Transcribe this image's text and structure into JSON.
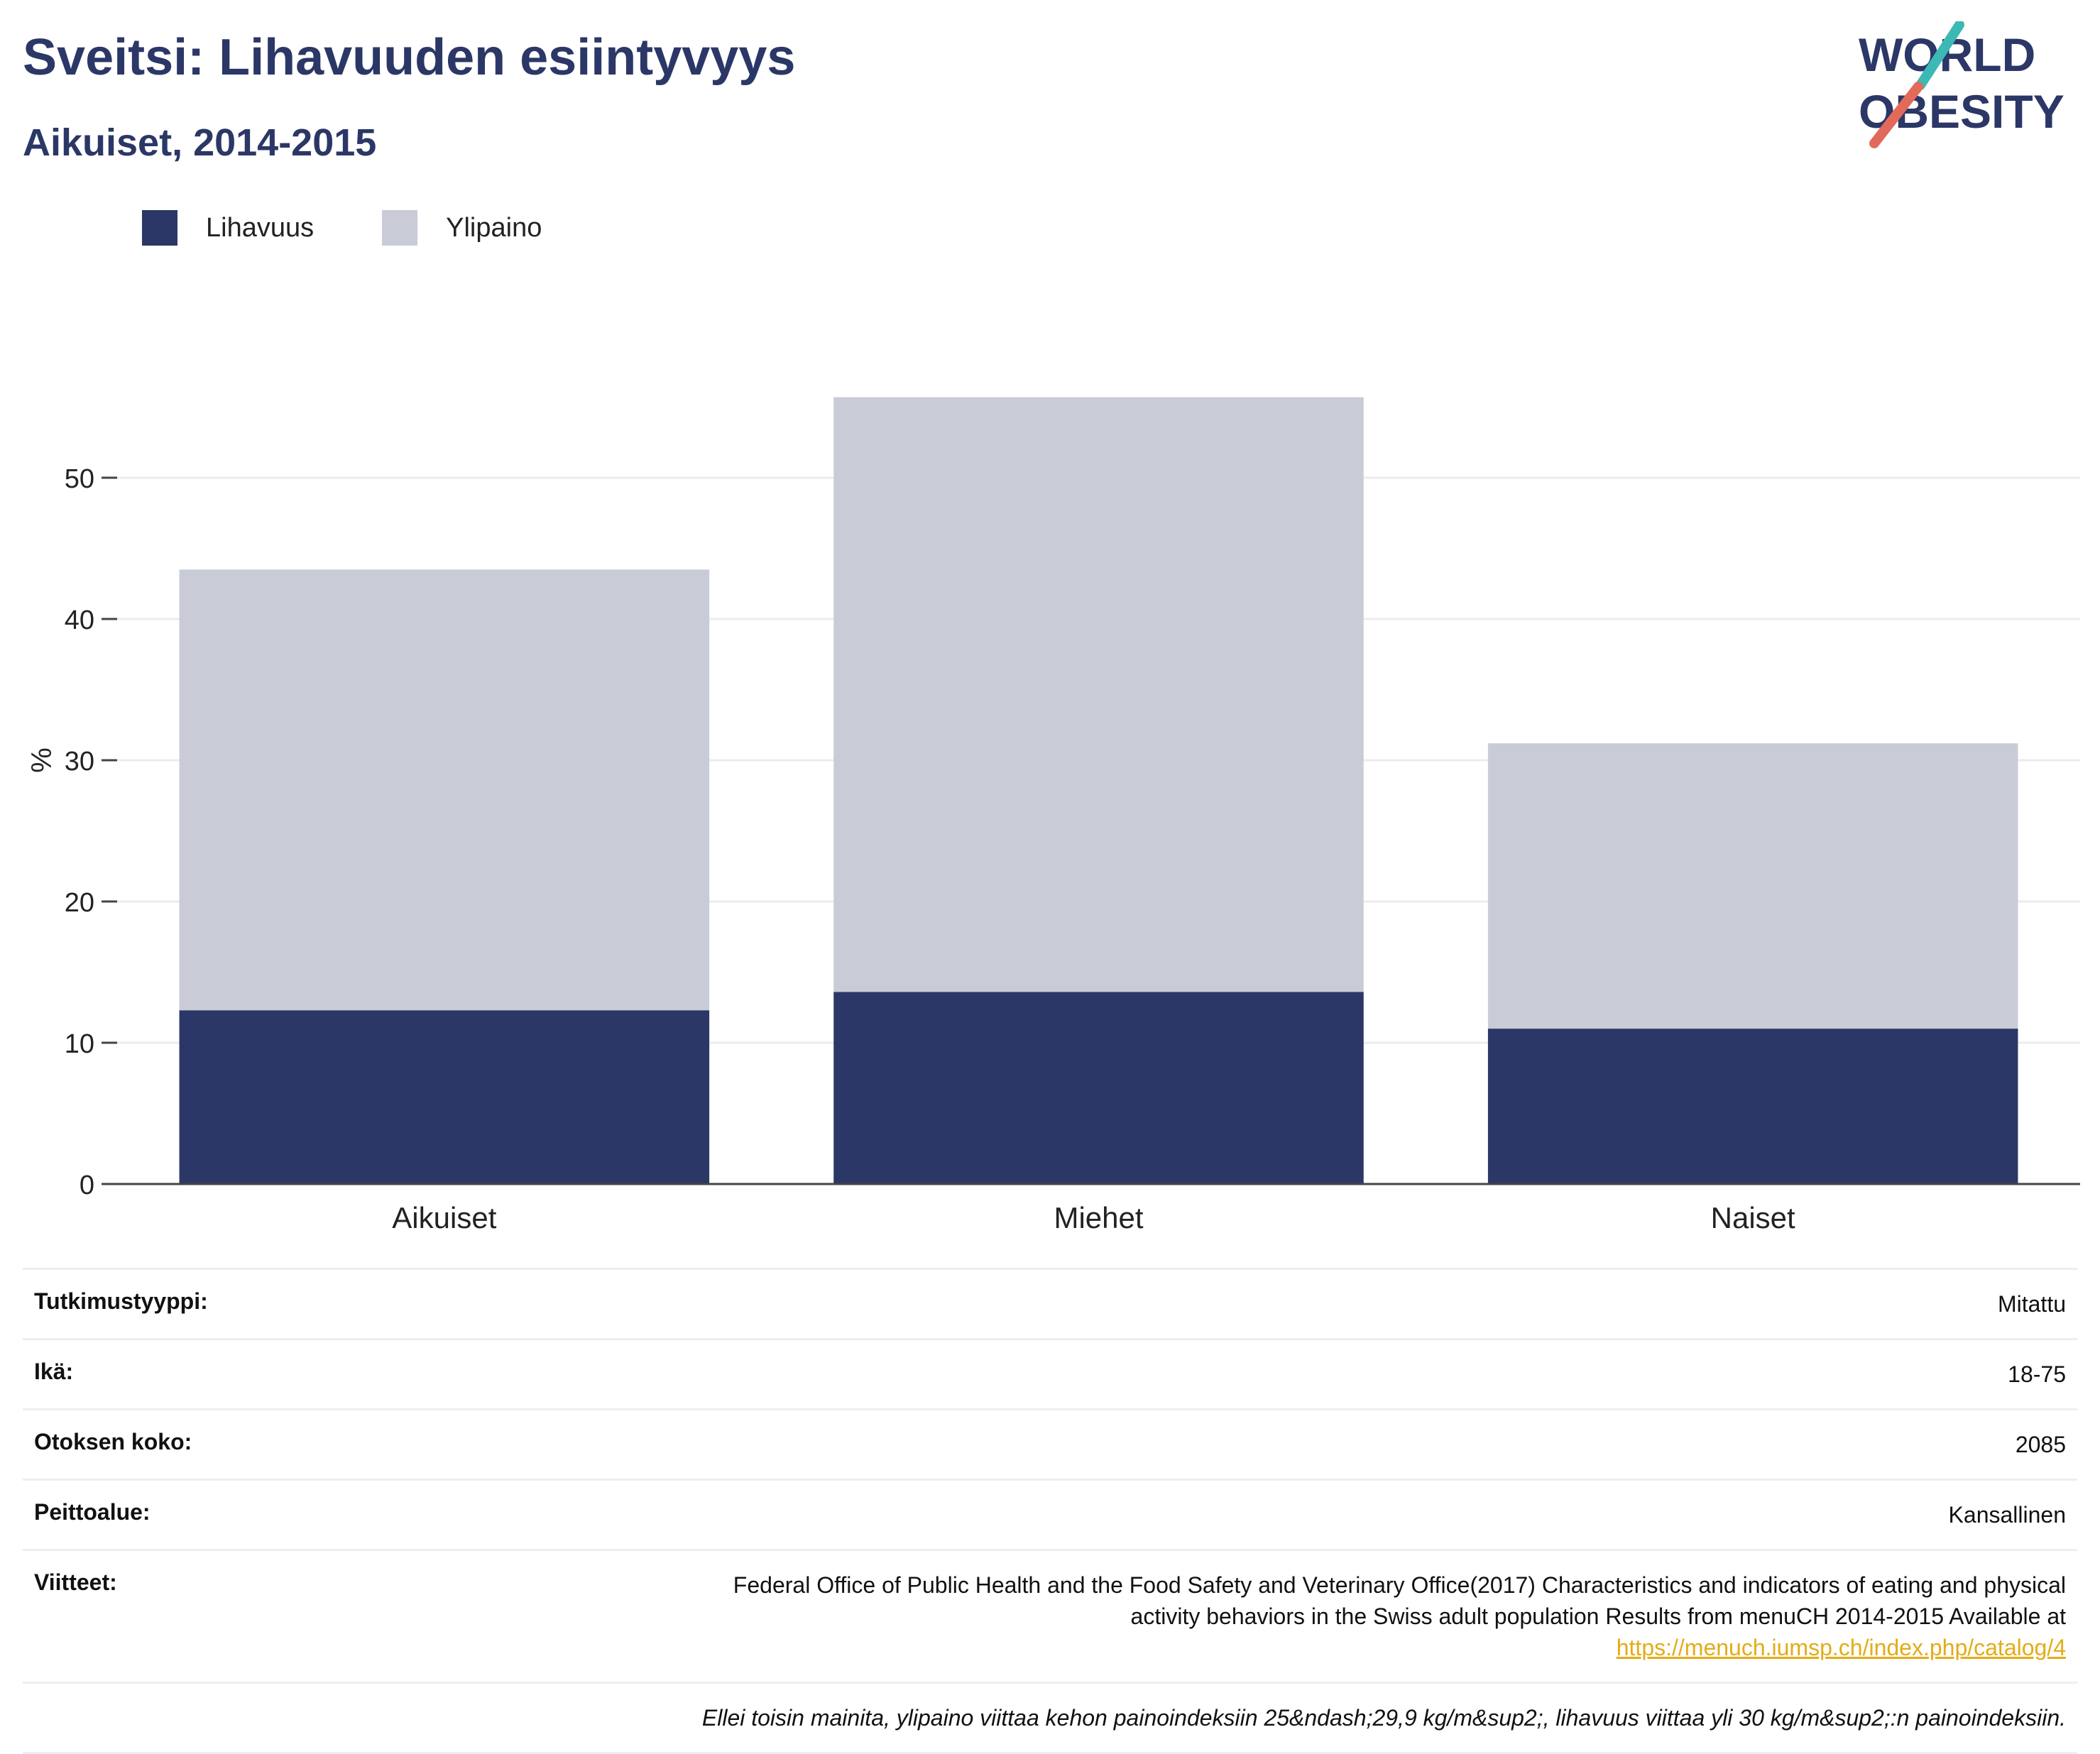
{
  "header": {
    "title": "Sveitsi: Lihavuuden esiintyvyys",
    "subtitle": "Aikuiset, 2014-2015",
    "logo_line1": "WORLD",
    "logo_line2": "OBESITY"
  },
  "legend": {
    "items": [
      "Lihavuus",
      "Ylipaino"
    ]
  },
  "colors": {
    "obesity": "#2b3766",
    "overweight": "#c9ccd7",
    "grid": "#ececec",
    "axis": "#444444",
    "title": "#2b3766",
    "link": "#e3ac17"
  },
  "chart_data": {
    "type": "bar",
    "stacked": true,
    "categories": [
      "Aikuiset",
      "Miehet",
      "Naiset"
    ],
    "series": [
      {
        "name": "Lihavuus",
        "values": [
          12.3,
          13.6,
          11.0
        ]
      },
      {
        "name": "Ylipaino",
        "values": [
          31.2,
          42.1,
          20.2
        ]
      }
    ],
    "ylabel": "%",
    "ylim": [
      0,
      60
    ],
    "yticks": [
      0,
      10,
      20,
      30,
      40,
      50
    ],
    "grid": true,
    "legend_position": "top-left"
  },
  "info": {
    "rows": [
      {
        "key": "Tutkimustyyppi:",
        "value": "Mitattu"
      },
      {
        "key": "Ikä:",
        "value": "18-75"
      },
      {
        "key": "Otoksen koko:",
        "value": "2085"
      },
      {
        "key": "Peittoalue:",
        "value": "Kansallinen"
      }
    ],
    "reference_key": "Viitteet:",
    "reference_line1": "Federal Office of Public Health and the Food Safety and Veterinary Office(2017) Characteristics and indicators of eating and physical",
    "reference_line2": "activity behaviors in the Swiss adult population Results from menuCH 2014-2015 Available at",
    "reference_link": "https://menuch.iumsp.ch/index.php/catalog/4",
    "note": "Ellei toisin mainita, ylipaino viittaa kehon painoindeksiin 25&ndash;29,9 kg/m&sup2;, lihavuus viittaa yli 30 kg/m&sup2;:n painoindeksiin."
  }
}
